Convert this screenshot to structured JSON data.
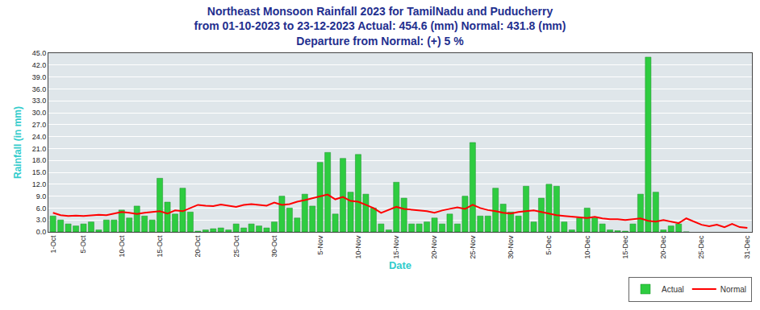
{
  "chart_data": {
    "type": "bar",
    "title": "Northeast Monsoon Rainfall 2023 for TamilNadu and Puducherry",
    "subtitle": [
      "from 01-10-2023 to 23-12-2023 Actual: 454.6 (mm) Normal: 431.8 (mm)",
      "Departure from Normal: (+) 5 %"
    ],
    "x_label": "Date",
    "y_label": "Rainfall (in mm)",
    "categories": [
      "1-Oct",
      null,
      null,
      null,
      "5-Oct",
      null,
      null,
      null,
      null,
      "10-Oct",
      null,
      null,
      null,
      null,
      "15-Oct",
      null,
      null,
      null,
      null,
      "20-Oct",
      null,
      null,
      null,
      null,
      "25-Oct",
      null,
      null,
      null,
      null,
      "30-Oct",
      null,
      null,
      null,
      null,
      null,
      "5-Nov",
      null,
      null,
      null,
      null,
      "10-Nov",
      null,
      null,
      null,
      null,
      "15-Nov",
      null,
      null,
      null,
      null,
      "20-Nov",
      null,
      null,
      null,
      null,
      "25-Nov",
      null,
      null,
      null,
      null,
      "30-Nov",
      null,
      null,
      null,
      null,
      "5-Dec",
      null,
      null,
      null,
      null,
      "10-Dec",
      null,
      null,
      null,
      null,
      "15-Dec",
      null,
      null,
      null,
      null,
      "20-Dec",
      null,
      null,
      null,
      null,
      "25-Dec",
      null,
      null,
      null,
      null,
      null,
      "31-Dec"
    ],
    "series": [
      {
        "name": "Actual",
        "type": "bar",
        "color": "#2ecc40",
        "values": [
          4.0,
          3.0,
          2.0,
          1.5,
          2.0,
          2.5,
          0.5,
          3.0,
          3.0,
          5.5,
          3.5,
          6.5,
          4.0,
          3.0,
          13.5,
          7.5,
          4.5,
          11.0,
          5.0,
          0.2,
          0.5,
          0.8,
          1.0,
          0.5,
          2.0,
          1.0,
          2.0,
          1.5,
          1.0,
          2.5,
          9.0,
          6.0,
          3.5,
          9.5,
          6.5,
          17.5,
          20.0,
          4.5,
          18.5,
          10.0,
          19.5,
          9.5,
          6.0,
          2.0,
          0.5,
          12.5,
          8.5,
          2.0,
          2.0,
          2.5,
          3.5,
          2.0,
          4.5,
          2.0,
          9.0,
          22.5,
          4.0,
          4.0,
          11.0,
          7.0,
          5.0,
          4.0,
          11.5,
          2.5,
          8.5,
          12.0,
          11.5,
          2.5,
          0.5,
          3.5,
          6.0,
          3.5,
          2.0,
          0.5,
          0.3,
          0.2,
          2.0,
          9.5,
          44.0,
          10.0,
          0.5,
          1.5,
          2.0,
          0.0,
          null,
          null,
          null,
          null,
          null,
          null,
          null,
          null
        ]
      },
      {
        "name": "Normal",
        "type": "line",
        "color": "#ff0000",
        "values": [
          4.8,
          4.2,
          4.0,
          4.1,
          4.0,
          4.2,
          4.3,
          4.2,
          4.6,
          5.0,
          4.8,
          4.5,
          4.8,
          5.0,
          5.2,
          4.6,
          5.4,
          5.2,
          6.0,
          6.8,
          6.6,
          6.5,
          6.9,
          6.6,
          6.3,
          6.8,
          7.0,
          6.8,
          6.6,
          7.4,
          6.8,
          7.0,
          7.6,
          8.0,
          8.5,
          8.9,
          9.4,
          8.2,
          8.8,
          7.8,
          7.6,
          6.8,
          6.0,
          4.8,
          5.6,
          6.3,
          5.8,
          5.6,
          5.5,
          5.2,
          4.8,
          5.4,
          5.8,
          6.2,
          5.8,
          6.8,
          6.0,
          5.5,
          5.2,
          4.8,
          4.6,
          5.0,
          5.2,
          5.4,
          5.0,
          4.6,
          4.2,
          4.0,
          3.8,
          3.6,
          3.5,
          3.8,
          3.4,
          3.2,
          3.2,
          3.0,
          3.2,
          3.4,
          2.8,
          2.6,
          3.0,
          2.6,
          2.2,
          3.4,
          2.6,
          1.8,
          1.4,
          1.8,
          1.2,
          2.0,
          1.2,
          1.0
        ]
      }
    ],
    "ylim": [
      0,
      45
    ],
    "yticks": [
      {
        "value": 0,
        "label": "0.0"
      },
      {
        "value": 3,
        "label": "3.0"
      },
      {
        "value": 6,
        "label": "6.0"
      },
      {
        "value": 9,
        "label": "9.0"
      },
      {
        "value": 12,
        "label": "12.0"
      },
      {
        "value": 15,
        "label": "15.0"
      },
      {
        "value": 18,
        "label": "18.0"
      },
      {
        "value": 21,
        "label": "21.0"
      },
      {
        "value": 24,
        "label": "24.0"
      },
      {
        "value": 27,
        "label": "27.0"
      },
      {
        "value": 30,
        "label": "30.0"
      },
      {
        "value": 33,
        "label": "33.0"
      },
      {
        "value": 36,
        "label": "36.0"
      },
      {
        "value": 39,
        "label": "39.0"
      },
      {
        "value": 42,
        "label": "42.0"
      },
      {
        "value": 45,
        "label": "45.0"
      }
    ],
    "grid": true,
    "legend": "lower right"
  }
}
